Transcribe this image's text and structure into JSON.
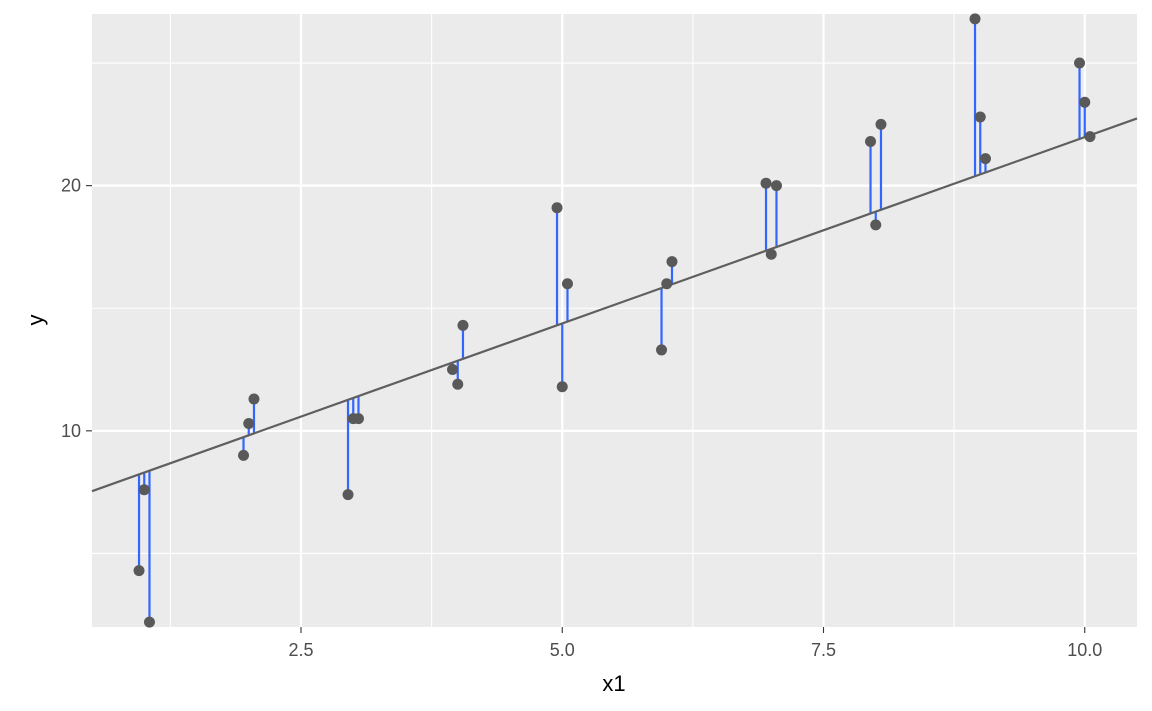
{
  "chart_data": {
    "type": "scatter",
    "title": "",
    "xlabel": "x1",
    "ylabel": "y",
    "xlim": [
      0.5,
      10.5
    ],
    "ylim": [
      2.0,
      27.0
    ],
    "x_ticks": [
      2.5,
      5.0,
      7.5,
      10.0
    ],
    "x_tick_labels": [
      "2.5",
      "5.0",
      "7.5",
      "10.0"
    ],
    "x_minor_ticks": [
      1.25,
      3.75,
      6.25,
      8.75
    ],
    "y_ticks": [
      10,
      20
    ],
    "y_tick_labels": [
      "10",
      "20"
    ],
    "y_minor_ticks": [
      5,
      15,
      25
    ],
    "grid": true,
    "legend": "none",
    "fit_line": {
      "intercept": 6.78,
      "slope": 1.52,
      "color": "#5f5f5f"
    },
    "residual_color": "#3366ff",
    "point_color": "#595959",
    "panel_background": "#ebebeb",
    "points": [
      {
        "x": 0.95,
        "y": 4.3
      },
      {
        "x": 1.0,
        "y": 7.6
      },
      {
        "x": 1.05,
        "y": 2.2
      },
      {
        "x": 1.95,
        "y": 9.0
      },
      {
        "x": 2.0,
        "y": 10.3
      },
      {
        "x": 2.05,
        "y": 11.3
      },
      {
        "x": 2.95,
        "y": 7.4
      },
      {
        "x": 3.0,
        "y": 10.5
      },
      {
        "x": 3.05,
        "y": 10.5
      },
      {
        "x": 3.95,
        "y": 12.5
      },
      {
        "x": 4.0,
        "y": 11.9
      },
      {
        "x": 4.05,
        "y": 14.3
      },
      {
        "x": 4.95,
        "y": 19.1
      },
      {
        "x": 5.0,
        "y": 11.8
      },
      {
        "x": 5.05,
        "y": 16.0
      },
      {
        "x": 5.95,
        "y": 13.3
      },
      {
        "x": 6.0,
        "y": 16.0
      },
      {
        "x": 6.05,
        "y": 16.9
      },
      {
        "x": 6.95,
        "y": 20.1
      },
      {
        "x": 7.0,
        "y": 17.2
      },
      {
        "x": 7.05,
        "y": 20.0
      },
      {
        "x": 7.95,
        "y": 21.8
      },
      {
        "x": 8.0,
        "y": 18.4
      },
      {
        "x": 8.05,
        "y": 22.5
      },
      {
        "x": 8.95,
        "y": 26.8
      },
      {
        "x": 9.0,
        "y": 22.8
      },
      {
        "x": 9.05,
        "y": 21.1
      },
      {
        "x": 9.95,
        "y": 25.0
      },
      {
        "x": 10.0,
        "y": 23.4
      },
      {
        "x": 10.05,
        "y": 22.0
      }
    ]
  }
}
